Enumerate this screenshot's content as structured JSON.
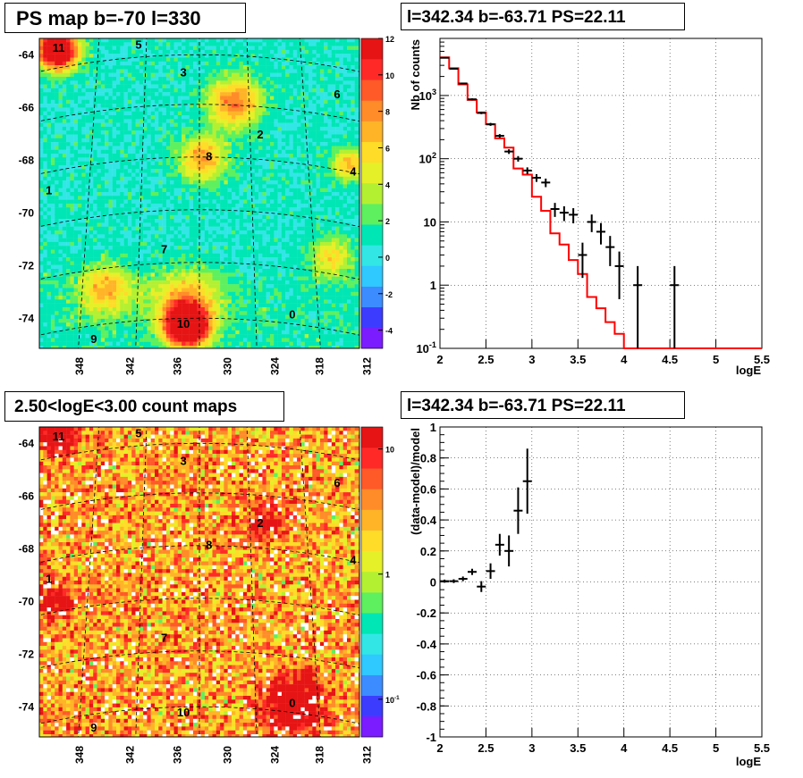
{
  "panels": {
    "top_left": {
      "title": "PS map b=-70 l=330",
      "lat_ticks": [
        "-64",
        "-66",
        "-68",
        "-70",
        "-72",
        "-74"
      ],
      "lon_ticks": [
        "348",
        "342",
        "336",
        "330",
        "324",
        "318",
        "312"
      ],
      "colorbar_ticks": [
        "12",
        "10",
        "8",
        "6",
        "4",
        "2",
        "0",
        "-2",
        "-4"
      ],
      "sources": [
        "11",
        "5",
        "3",
        "6",
        "2",
        "8",
        "4",
        "1",
        "7",
        "0",
        "10",
        "9"
      ]
    },
    "bottom_left": {
      "title": "2.50<logE<3.00 count maps",
      "lat_ticks": [
        "-64",
        "-66",
        "-68",
        "-70",
        "-72",
        "-74"
      ],
      "lon_ticks": [
        "348",
        "342",
        "336",
        "330",
        "324",
        "318",
        "312"
      ],
      "colorbar_ticks": [
        "10",
        "1",
        "10-1"
      ],
      "sources": [
        "11",
        "5",
        "3",
        "6",
        "2",
        "8",
        "4",
        "1",
        "7",
        "0",
        "10",
        "9"
      ]
    },
    "top_right": {
      "title": "l=342.34 b=-63.71 PS=22.11",
      "xlabel": "logE",
      "ylabel": "Nb of counts",
      "x_ticks": [
        "2",
        "2.5",
        "3",
        "3.5",
        "4",
        "4.5",
        "5",
        "5.5"
      ],
      "y_ticks": [
        "10-1",
        "1",
        "10",
        "102",
        "103"
      ]
    },
    "bottom_right": {
      "title": "l=342.34 b=-63.71 PS=22.11",
      "xlabel": "logE",
      "ylabel": "(data-model)/model",
      "x_ticks": [
        "2",
        "2.5",
        "3",
        "3.5",
        "4",
        "4.5",
        "5",
        "5.5"
      ],
      "y_ticks": [
        "1",
        "0.8",
        "0.6",
        "0.4",
        "0.2",
        "0",
        "-0.2",
        "-0.4",
        "-0.6",
        "-0.8",
        "-1"
      ]
    }
  },
  "colors": {
    "model_line": "#ff0000",
    "data_points": "#000000"
  },
  "chart_data": [
    {
      "type": "heatmap",
      "title": "PS map b=-70 l=330",
      "ylabel": "",
      "xlabel": "",
      "zlim": [
        -5,
        12
      ],
      "source_labels": [
        "11",
        "5",
        "3",
        "6",
        "2",
        "8",
        "4",
        "1",
        "7",
        "0",
        "10",
        "9"
      ]
    },
    {
      "type": "heatmap",
      "title": "2.50<logE<3.00 count maps",
      "zscale": "log",
      "zlim": [
        0.05,
        15
      ],
      "source_labels": [
        "11",
        "5",
        "3",
        "6",
        "2",
        "8",
        "4",
        "1",
        "7",
        "0",
        "10",
        "9"
      ]
    },
    {
      "type": "line",
      "title": "l=342.34 b=-63.71 PS=22.11",
      "xlabel": "logE",
      "ylabel": "Nb of counts",
      "yscale": "log",
      "xlim": [
        2,
        5.5
      ],
      "ylim": [
        0.1,
        8000
      ],
      "series": [
        {
          "name": "model",
          "bin_edges": [
            2.0,
            2.1,
            2.2,
            2.3,
            2.4,
            2.5,
            2.6,
            2.7,
            2.8,
            2.9,
            3.0,
            3.1,
            3.2,
            3.3,
            3.4,
            3.5,
            3.6,
            3.7,
            3.8,
            3.9,
            4.0,
            4.1,
            4.2,
            4.3,
            4.4,
            4.5,
            4.6,
            4.7,
            4.8,
            4.9,
            5.0,
            5.1,
            5.2,
            5.3,
            5.4,
            5.5
          ],
          "values": [
            4000,
            2700,
            1500,
            850,
            540,
            350,
            210,
            150,
            70,
            56,
            25,
            15,
            6.6,
            4.4,
            2.5,
            1.5,
            0.65,
            0.43,
            0.26,
            0.17,
            0.1,
            0.1,
            0.1,
            0.1,
            0.1,
            0.1,
            0.1,
            0.1,
            0.1,
            0.1,
            0.1,
            0.1,
            0.1,
            0.1,
            0.1
          ]
        },
        {
          "name": "data",
          "x": [
            2.05,
            2.15,
            2.25,
            2.35,
            2.45,
            2.55,
            2.65,
            2.75,
            2.85,
            2.95,
            3.05,
            3.15,
            3.25,
            3.35,
            3.45,
            3.55,
            3.65,
            3.75,
            3.85,
            3.95,
            4.15,
            4.55
          ],
          "y": [
            3950,
            2650,
            1550,
            870,
            530,
            350,
            230,
            130,
            100,
            65,
            50,
            42,
            16,
            14,
            13,
            3,
            10,
            7,
            4,
            2,
            1,
            1
          ],
          "yerr_low": [
            60,
            50,
            40,
            30,
            23,
            19,
            15,
            11,
            10,
            8,
            7,
            6.5,
            4,
            3.7,
            3.5,
            1.7,
            3.1,
            2.6,
            2,
            1.4,
            0.95,
            0.95
          ],
          "yerr_high": [
            60,
            50,
            40,
            30,
            23,
            19,
            15,
            11,
            10,
            8,
            7,
            6.5,
            4,
            3.7,
            3.5,
            1.7,
            3.1,
            2.6,
            2,
            1.4,
            1,
            1
          ]
        }
      ]
    },
    {
      "type": "scatter",
      "title": "l=342.34 b=-63.71 PS=22.11",
      "xlabel": "logE",
      "ylabel": "(data-model)/model",
      "xlim": [
        2,
        5.5
      ],
      "ylim": [
        -1,
        1
      ],
      "series": [
        {
          "name": "",
          "x": [
            2.05,
            2.15,
            2.25,
            2.35,
            2.45,
            2.55,
            2.65,
            2.75,
            2.85,
            2.95
          ],
          "y": [
            0.005,
            0.005,
            0.02,
            0.065,
            -0.03,
            0.07,
            0.24,
            0.2,
            0.46,
            0.65
          ],
          "yerr": [
            0.01,
            0.012,
            0.015,
            0.02,
            0.035,
            0.05,
            0.07,
            0.1,
            0.15,
            0.21
          ]
        }
      ]
    }
  ]
}
